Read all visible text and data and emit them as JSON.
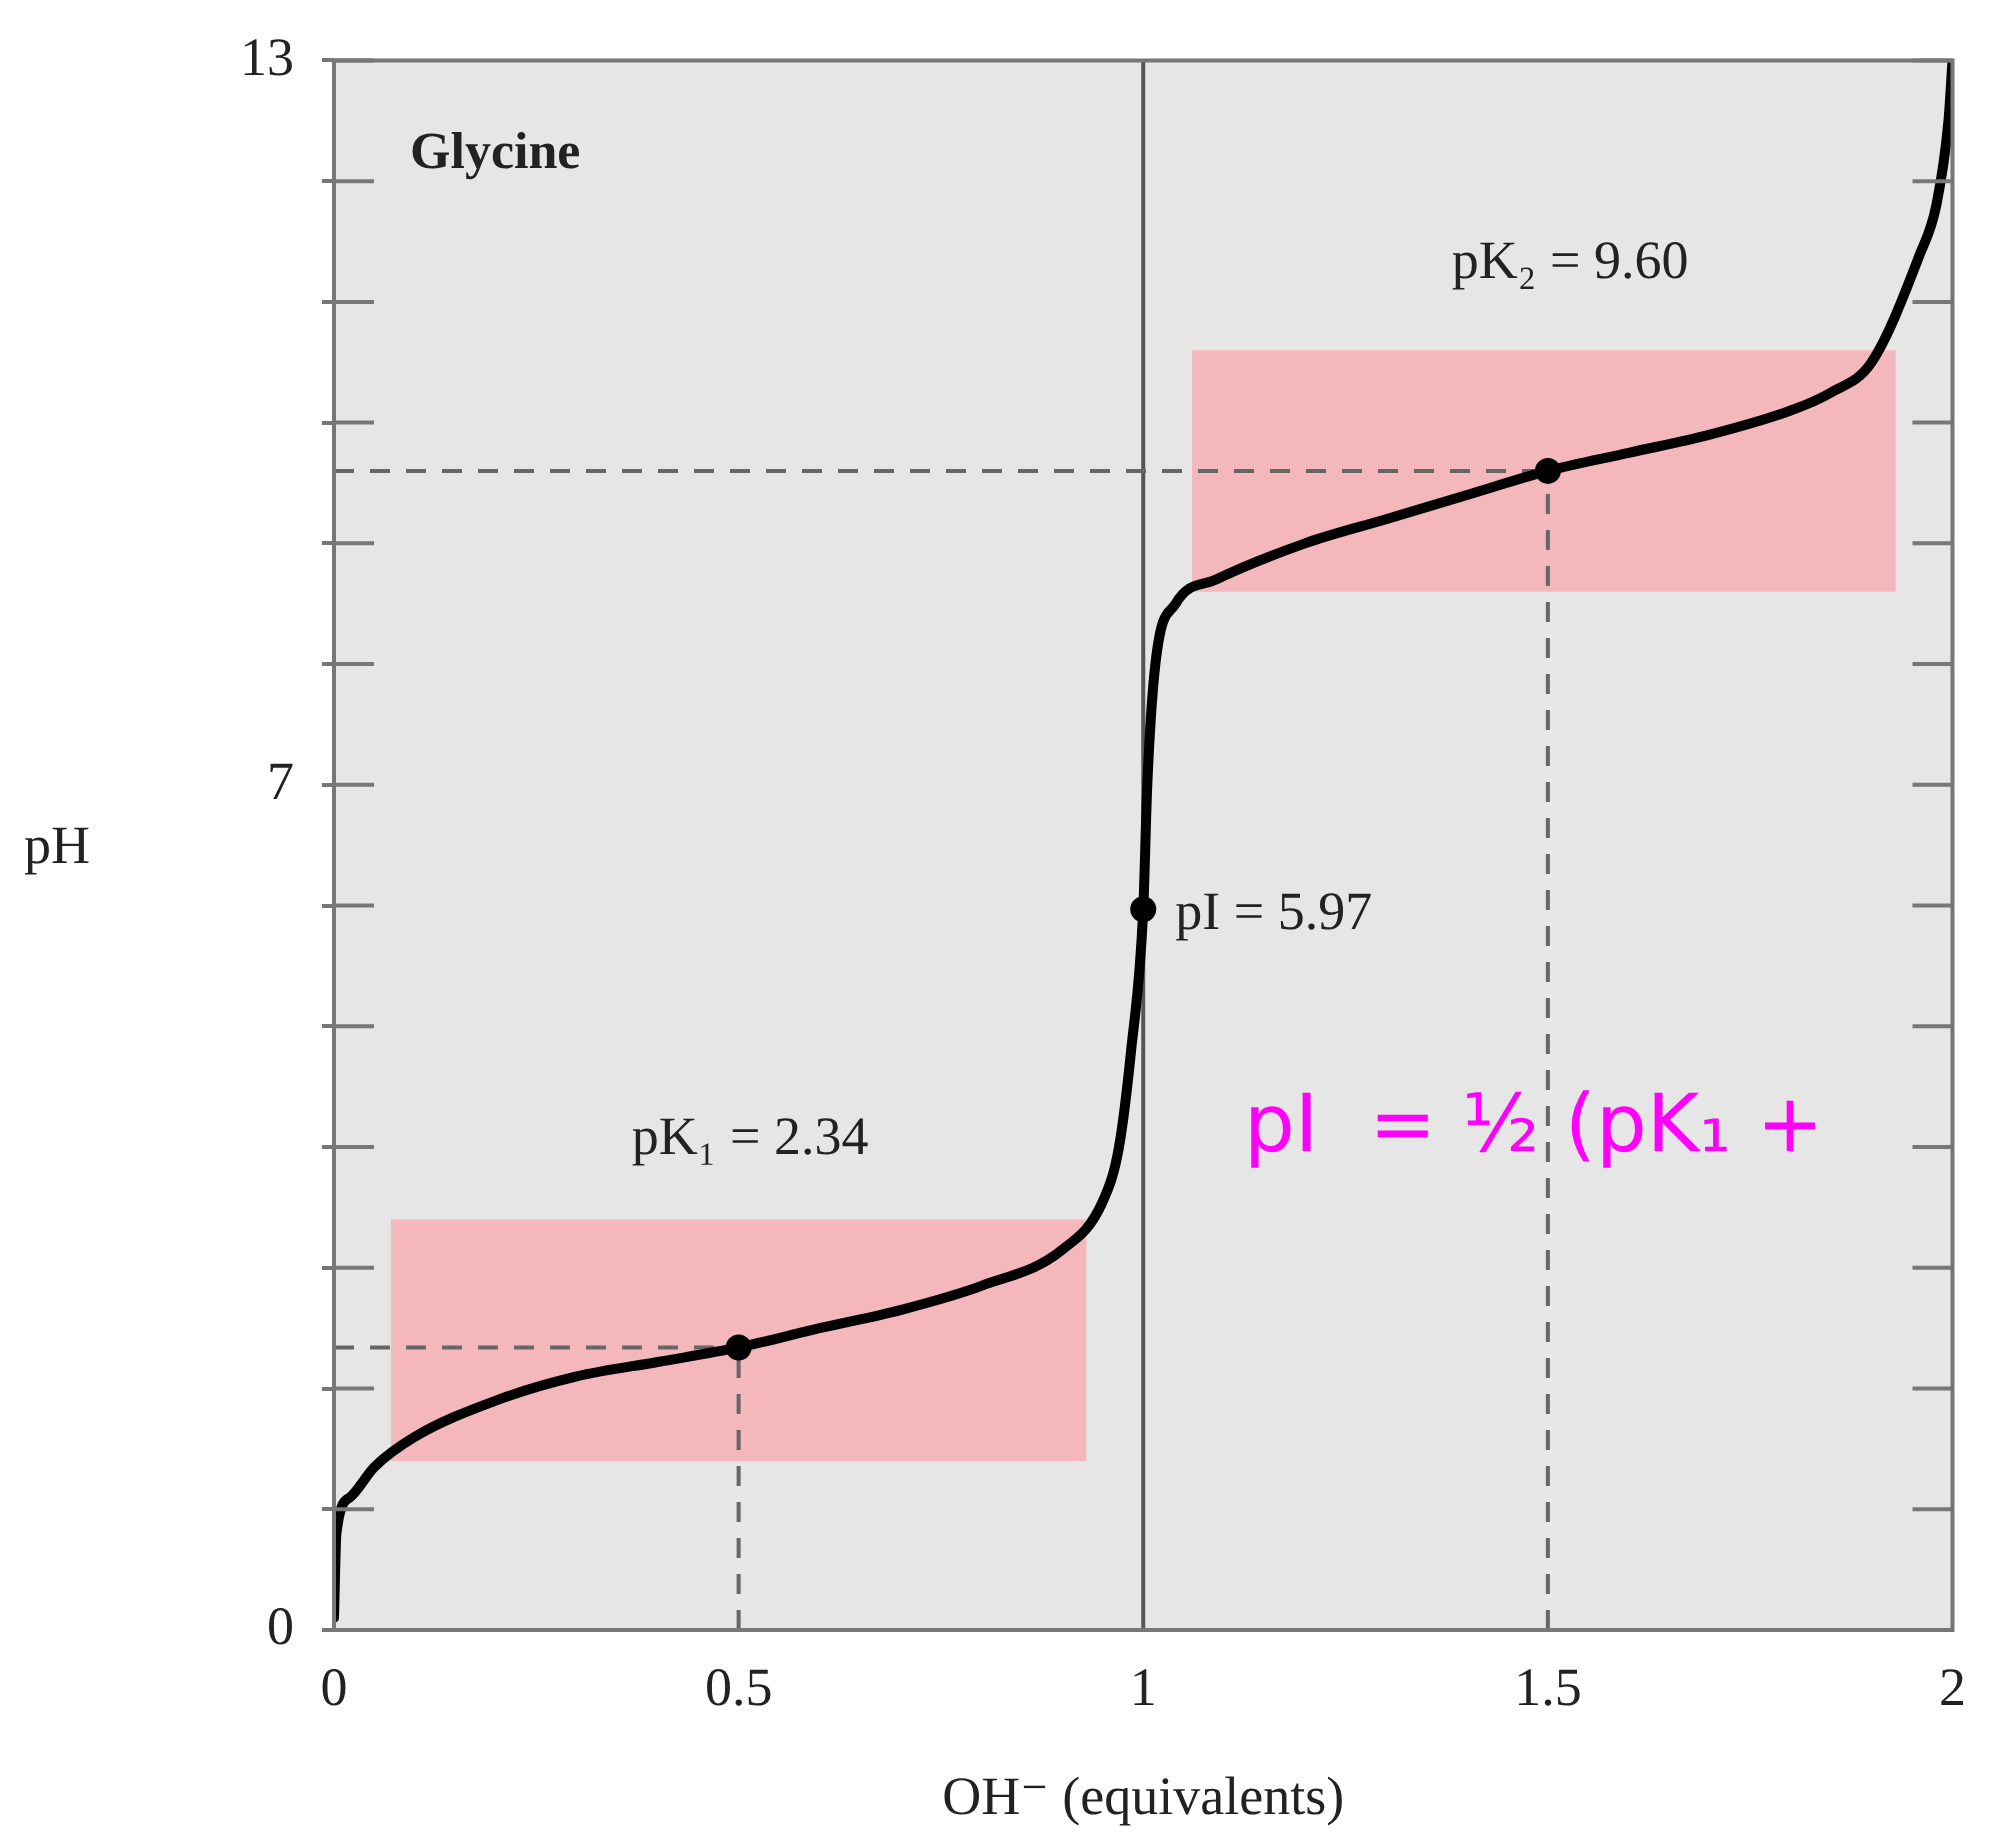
{
  "chart_data": {
    "type": "line",
    "title": "Glycine",
    "xlabel": "OH⁻ (equivalents)",
    "ylabel": "pH",
    "xlim": [
      0,
      2
    ],
    "xticks": [
      0,
      0.5,
      1,
      1.5,
      2
    ],
    "ylim": [
      0,
      13
    ],
    "yticks": [
      0,
      {
        "value": 1,
        "label": null
      },
      {
        "value": 2,
        "label": null
      },
      {
        "value": 3,
        "label": null
      },
      {
        "value": 4,
        "label": null
      },
      {
        "value": 5,
        "label": null
      },
      {
        "value": 6,
        "label": null
      },
      7,
      {
        "value": 8,
        "label": null
      },
      {
        "value": 9,
        "label": null
      },
      {
        "value": 10,
        "label": null
      },
      {
        "value": 11,
        "label": null
      },
      {
        "value": 12,
        "label": null
      },
      13
    ],
    "series": [
      {
        "type": "line",
        "color": "#000000",
        "marker": "none",
        "x": [
          0,
          0.003,
          0.02,
          0.05,
          0.1,
          0.2,
          0.3,
          0.4,
          0.5,
          0.6,
          0.7,
          0.8,
          0.9,
          0.95,
          0.97,
          0.985,
          1,
          1.005,
          1.015,
          1.04,
          1.09,
          1.2,
          1.3,
          1.4,
          1.5,
          1.6,
          1.7,
          1.8,
          1.85,
          1.9,
          1.96,
          1.98,
          1.995,
          2
        ],
        "values": [
          0.1,
          0.8,
          1.1,
          1.35,
          1.6,
          1.9,
          2.1,
          2.22,
          2.34,
          2.5,
          2.65,
          2.85,
          3.15,
          3.55,
          4.0,
          4.8,
          5.97,
          7.0,
          8.0,
          8.5,
          8.7,
          9.0,
          9.2,
          9.4,
          9.6,
          9.75,
          9.9,
          10.1,
          10.25,
          10.5,
          11.4,
          11.8,
          12.5,
          13
        ]
      },
      {
        "type": "scatter",
        "color": "#000000",
        "marker": "circle",
        "x": [
          0.5,
          1,
          1.5
        ],
        "values": [
          2.34,
          5.97,
          9.6
        ]
      }
    ],
    "ref_lines": [
      {
        "axis": "x",
        "value": 0.5,
        "line_style": "dashed",
        "color": "#666666"
      },
      {
        "axis": "x",
        "value": 1,
        "line_style": "solid",
        "color": "#555555"
      },
      {
        "axis": "x",
        "value": 1.5,
        "line_style": "dashed",
        "color": "#666666"
      },
      {
        "axis": "y",
        "value": 2.34,
        "line_style": "dashed",
        "color": "#666666"
      },
      {
        "axis": "y",
        "value": 9.6,
        "line_style": "dashed",
        "color": "#666666"
      }
    ],
    "bands": [
      {
        "axis": "y",
        "from": 1.4,
        "to": 3.4,
        "color": "#f4b8bc"
      },
      {
        "axis": "y",
        "from": 8.6,
        "to": 10.6,
        "color": "#f4b8bc"
      }
    ],
    "annotations": [
      "pK₁ = 2.34",
      {
        "text": "pI = 5.97",
        "x": 1,
        "y": 5.97
      },
      "pK₂ = 9.60",
      "pI  = ½ (pK₁ +"
    ]
  }
}
